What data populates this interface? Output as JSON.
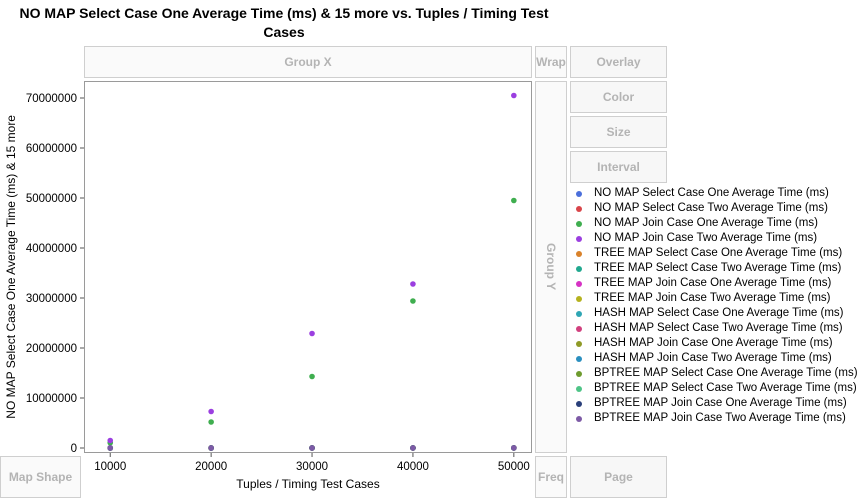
{
  "chart_data": {
    "type": "scatter",
    "title": "NO MAP Select Case One Average Time (ms) & 15 more vs. Tuples / Timing Test Cases",
    "xlabel": "Tuples / Timing Test Cases",
    "ylabel": "NO MAP Select Case One Average Time (ms) & 15 more",
    "xlim": [
      7400,
      51800
    ],
    "ylim": [
      -1000000,
      73400000
    ],
    "x": [
      10000,
      20000,
      30000,
      40000,
      50000
    ],
    "xticks": [
      "10000",
      "20000",
      "30000",
      "40000",
      "50000"
    ],
    "yticks": [
      "0",
      "10000000",
      "20000000",
      "30000000",
      "40000000",
      "50000000",
      "60000000",
      "70000000"
    ],
    "legend_position": "right",
    "series": [
      {
        "name": "NO MAP Select Case One Average Time (ms)",
        "color": "#4b6fdb",
        "values": [
          2000,
          5000,
          8000,
          10000,
          12000
        ]
      },
      {
        "name": "NO MAP Select Case Two Average Time (ms)",
        "color": "#d9454a",
        "values": [
          2000,
          5000,
          8000,
          10000,
          12000
        ]
      },
      {
        "name": "NO MAP Join Case One Average Time (ms)",
        "color": "#3fae4f",
        "values": [
          1050000,
          5200000,
          14300000,
          29400000,
          49500000
        ]
      },
      {
        "name": "NO MAP Join Case Two Average Time (ms)",
        "color": "#9b3fe0",
        "values": [
          1500000,
          7300000,
          22900000,
          32800000,
          70500000
        ]
      },
      {
        "name": "TREE MAP Select Case One Average Time (ms)",
        "color": "#d9822b",
        "values": [
          3000,
          6000,
          9000,
          12000,
          15000
        ]
      },
      {
        "name": "TREE MAP Select Case Two Average Time (ms)",
        "color": "#21a88f",
        "values": [
          3000,
          6000,
          9000,
          12000,
          15000
        ]
      },
      {
        "name": "TREE MAP Join Case One Average Time (ms)",
        "color": "#d632c4",
        "values": [
          4000,
          8000,
          12000,
          16000,
          20000
        ]
      },
      {
        "name": "TREE MAP Join Case Two Average Time (ms)",
        "color": "#b5b21f",
        "values": [
          4000,
          8000,
          12000,
          16000,
          20000
        ]
      },
      {
        "name": "HASH MAP Select Case One Average Time (ms)",
        "color": "#2fa6b4",
        "values": [
          2000,
          4000,
          6000,
          8000,
          10000
        ]
      },
      {
        "name": "HASH MAP Select Case Two Average Time (ms)",
        "color": "#d1407e",
        "values": [
          2000,
          4000,
          6000,
          8000,
          10000
        ]
      },
      {
        "name": "HASH MAP Join Case One Average Time (ms)",
        "color": "#8f9a26",
        "values": [
          3000,
          6000,
          9000,
          12000,
          15000
        ]
      },
      {
        "name": "HASH MAP Join Case Two Average Time (ms)",
        "color": "#2b8fbf",
        "values": [
          3000,
          6000,
          9000,
          12000,
          15000
        ]
      },
      {
        "name": "BPTREE MAP Select Case One Average Time (ms)",
        "color": "#6e9b2e",
        "values": [
          3000,
          6000,
          9000,
          12000,
          15000
        ]
      },
      {
        "name": "BPTREE MAP Select Case Two Average Time (ms)",
        "color": "#4fc487",
        "values": [
          3000,
          6000,
          9000,
          12000,
          15000
        ]
      },
      {
        "name": "BPTREE MAP Join Case One Average Time (ms)",
        "color": "#2a3f7a",
        "values": [
          4000,
          8000,
          12000,
          16000,
          20000
        ]
      },
      {
        "name": "BPTREE MAP Join Case Two Average Time (ms)",
        "color": "#7d5aa6",
        "values": [
          4000,
          8000,
          12000,
          16000,
          20000
        ]
      }
    ]
  },
  "zones": {
    "group_x": "Group X",
    "group_y": "Group Y",
    "wrap": "Wrap",
    "overlay": "Overlay",
    "color": "Color",
    "size": "Size",
    "interval": "Interval",
    "map_shape": "Map Shape",
    "freq": "Freq",
    "page": "Page"
  }
}
